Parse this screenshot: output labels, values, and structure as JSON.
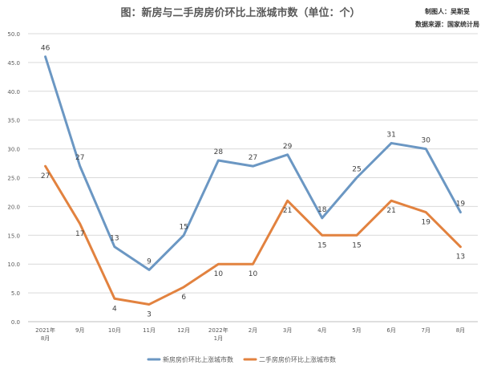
{
  "chart_data": {
    "type": "line",
    "title": "图：新房与二手房房价环比上涨城市数（单位：个）",
    "notes": [
      "制图人：吴斯旻",
      "数据来源：国家统计局"
    ],
    "xlabel": "",
    "ylabel": "",
    "categories": [
      [
        "2021年",
        "8月"
      ],
      [
        "9月"
      ],
      [
        "10月"
      ],
      [
        "11月"
      ],
      [
        "12月"
      ],
      [
        "2022年",
        "1月"
      ],
      [
        "2月"
      ],
      [
        "3月"
      ],
      [
        "4月"
      ],
      [
        "5月"
      ],
      [
        "6月"
      ],
      [
        "7月"
      ],
      [
        "8月"
      ]
    ],
    "ylim": [
      0,
      50
    ],
    "yticks": [
      "0.0",
      "5.0",
      "10.0",
      "15.0",
      "20.0",
      "25.0",
      "30.0",
      "35.0",
      "40.0",
      "45.0",
      "50.0"
    ],
    "grid": true,
    "legend": "bottom",
    "series": [
      {
        "name": "新房房价环比上涨城市数",
        "color": "#6b97c3",
        "values": [
          46,
          27,
          13,
          9,
          15,
          28,
          27,
          29,
          18,
          25,
          31,
          30,
          19
        ]
      },
      {
        "name": "二手房房价环比上涨城市数",
        "color": "#e2823f",
        "values": [
          27,
          17,
          4,
          3,
          6,
          10,
          10,
          21,
          15,
          15,
          21,
          19,
          13
        ]
      }
    ]
  }
}
